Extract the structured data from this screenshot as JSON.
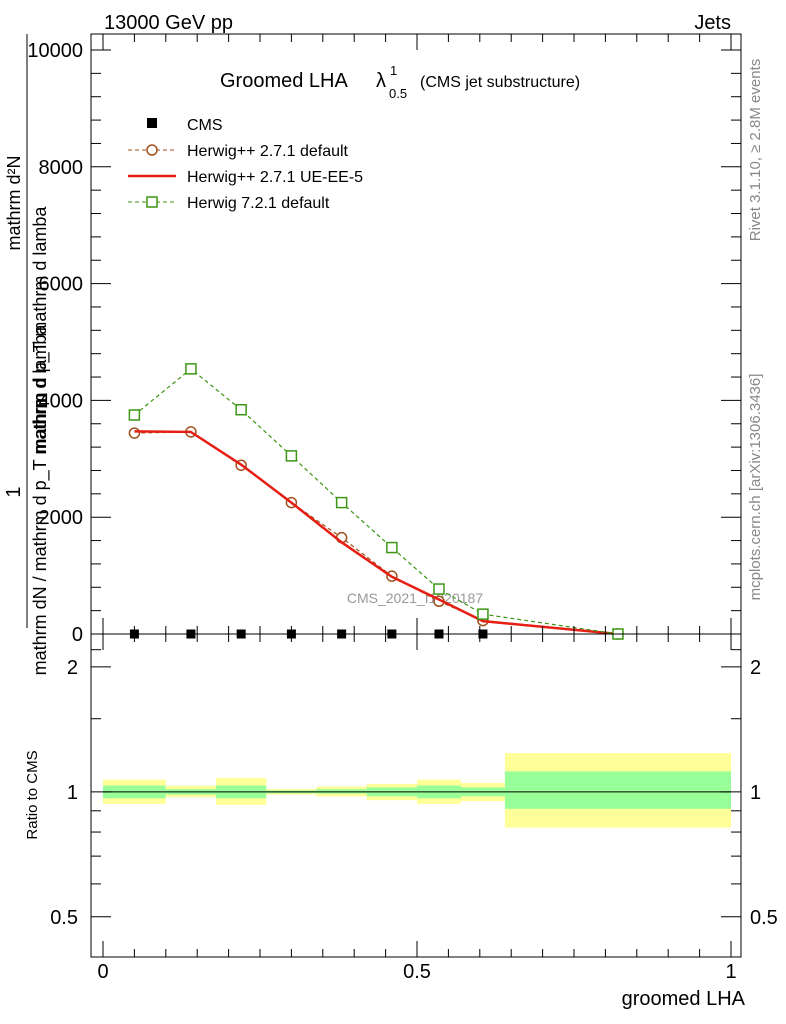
{
  "header": {
    "energy_label": "13000 GeV pp",
    "category": "Jets"
  },
  "side_text": {
    "rivet": "Rivet 3.1.10, ≥ 2.8M events",
    "mcplots": "mcplots.cern.ch [arXiv:1306.3436]"
  },
  "chart_data": [
    {
      "type": "line",
      "title_main": "Groomed LHA",
      "title_symbol": "λ",
      "title_sup": "1",
      "title_sub": "0.5",
      "title_suffix": "(CMS jet substructure)",
      "ylabel_top": "1",
      "ylabel_left": "mathrm dN / mathrm d p_T mathrm d lamba",
      "ylabel_frac_num": "mathrm d²N",
      "ylabel_frac_den": "mathrm d p_T mathrm d lamba",
      "watermark": "CMS_2021_I1920187",
      "ylim": [
        0,
        10000
      ],
      "yticks": [
        "0",
        "2000",
        "4000",
        "6000",
        "8000",
        "10000"
      ],
      "legend": {
        "position": "top-left",
        "entries": [
          "CMS",
          "Herwig++ 2.7.1 default",
          "Herwig++ 2.7.1 UE-EE-5",
          "Herwig 7.2.1 default"
        ]
      },
      "x": [
        0.05,
        0.14,
        0.22,
        0.3,
        0.38,
        0.46,
        0.535,
        0.605,
        0.82
      ],
      "series": [
        {
          "name": "CMS",
          "color": "#000000",
          "style": "marker-square",
          "values": [
            0,
            0,
            0,
            0,
            0,
            0,
            0,
            0,
            0
          ]
        },
        {
          "name": "Herwig++ 2.7.1 default",
          "color": "#a0501e",
          "style": "dashed-circle",
          "values": [
            3440,
            3460,
            2890,
            2250,
            1650,
            990,
            560,
            230,
            0
          ]
        },
        {
          "name": "Herwig++ 2.7.1 UE-EE-5",
          "color": "#e61e14",
          "style": "solid",
          "values": [
            3470,
            3460,
            2900,
            2250,
            1570,
            980,
            590,
            220,
            0
          ]
        },
        {
          "name": "Herwig 7.2.1 default",
          "color": "#3c9614",
          "style": "dashed-square",
          "values": [
            3750,
            4540,
            3840,
            3050,
            2250,
            1480,
            770,
            340,
            0
          ]
        }
      ]
    },
    {
      "type": "area",
      "ylabel": "Ratio to CMS",
      "xlabel": "groomed LHA",
      "xlim": [
        0,
        1
      ],
      "xticks": [
        "0",
        "0.5",
        "1"
      ],
      "yticks": [
        "0.5",
        "1",
        "2"
      ],
      "ylim": [
        0.4,
        2.4
      ],
      "scale": "log",
      "reference_line": 1,
      "bands": {
        "colors": {
          "inner": "#99ff99",
          "outer": "#ffff99"
        },
        "bins": [
          {
            "x": [
              0,
              0.1
            ],
            "outer": [
              0.935,
              1.07
            ],
            "inner": [
              0.965,
              1.035
            ]
          },
          {
            "x": [
              0.1,
              0.18
            ],
            "outer": [
              0.97,
              1.035
            ],
            "inner": [
              0.985,
              1.015
            ]
          },
          {
            "x": [
              0.18,
              0.26
            ],
            "outer": [
              0.93,
              1.08
            ],
            "inner": [
              0.965,
              1.035
            ]
          },
          {
            "x": [
              0.26,
              0.34
            ],
            "outer": [
              0.985,
              1.015
            ],
            "inner": [
              0.992,
              1.008
            ]
          },
          {
            "x": [
              0.34,
              0.42
            ],
            "outer": [
              0.975,
              1.03
            ],
            "inner": [
              0.99,
              1.015
            ]
          },
          {
            "x": [
              0.42,
              0.5
            ],
            "outer": [
              0.955,
              1.045
            ],
            "inner": [
              0.975,
              1.025
            ]
          },
          {
            "x": [
              0.5,
              0.57
            ],
            "outer": [
              0.935,
              1.07
            ],
            "inner": [
              0.965,
              1.035
            ]
          },
          {
            "x": [
              0.57,
              0.64
            ],
            "outer": [
              0.95,
              1.05
            ],
            "inner": [
              0.975,
              1.025
            ]
          },
          {
            "x": [
              0.64,
              1.0
            ],
            "outer": [
              0.82,
              1.24
            ],
            "inner": [
              0.91,
              1.12
            ]
          }
        ]
      }
    }
  ]
}
